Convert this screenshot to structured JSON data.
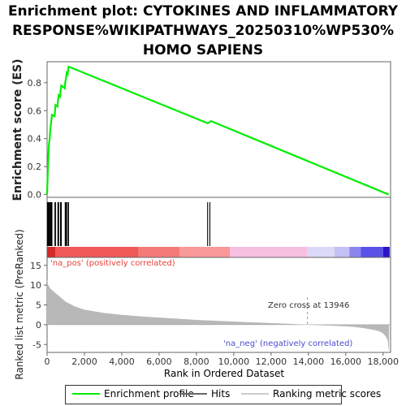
{
  "title_lines": [
    "Enrichment plot: CYTOKINES AND INFLAMMATORY",
    "RESPONSE%WIKIPATHWAYS_20250310%WP530%",
    "HOMO SAPIENS"
  ],
  "chart_data": {
    "type": "line",
    "x_axis": {
      "label": "Rank in Ordered Dataset",
      "range": [
        0,
        18400
      ],
      "ticks": [
        0,
        2000,
        4000,
        6000,
        8000,
        10000,
        12000,
        14000,
        16000,
        18000
      ],
      "tick_labels": [
        "0",
        "2,000",
        "4,000",
        "6,000",
        "8,000",
        "10,000",
        "12,000",
        "14,000",
        "16,000",
        "18,000"
      ]
    },
    "es_panel": {
      "ylabel": "Enrichment score (ES)",
      "ylim": [
        -0.02,
        0.95
      ],
      "yticks": [
        0.0,
        0.2,
        0.4,
        0.6,
        0.8
      ],
      "ytick_labels": [
        "0.0",
        "0.2",
        "0.4",
        "0.6",
        "0.8"
      ],
      "series": [
        {
          "name": "Enrichment profile",
          "color": "#00ee00",
          "points": [
            [
              0,
              0.0
            ],
            [
              20,
              0.09
            ],
            [
              40,
              0.17
            ],
            [
              60,
              0.24
            ],
            [
              80,
              0.31
            ],
            [
              100,
              0.36
            ],
            [
              140,
              0.4
            ],
            [
              170,
              0.46
            ],
            [
              220,
              0.52
            ],
            [
              260,
              0.57
            ],
            [
              400,
              0.56
            ],
            [
              420,
              0.59
            ],
            [
              450,
              0.64
            ],
            [
              560,
              0.63
            ],
            [
              580,
              0.67
            ],
            [
              620,
              0.71
            ],
            [
              700,
              0.7
            ],
            [
              720,
              0.74
            ],
            [
              760,
              0.78
            ],
            [
              950,
              0.76
            ],
            [
              970,
              0.8
            ],
            [
              1010,
              0.83
            ],
            [
              1050,
              0.87
            ],
            [
              1100,
              0.86
            ],
            [
              1130,
              0.89
            ],
            [
              1150,
              0.915
            ],
            [
              8600,
              0.51
            ],
            [
              8680,
              0.515
            ],
            [
              8720,
              0.52
            ],
            [
              8780,
              0.525
            ],
            [
              18300,
              0.0
            ]
          ]
        }
      ]
    },
    "hits": {
      "name": "Hits",
      "color": "#000000",
      "ranks": [
        20,
        40,
        60,
        80,
        100,
        140,
        170,
        220,
        260,
        420,
        450,
        580,
        620,
        720,
        760,
        970,
        1010,
        1050,
        1130,
        1150,
        8600,
        8720
      ]
    },
    "color_bar": {
      "segments": [
        {
          "start": 0,
          "end": 450,
          "color": "#d42a2a"
        },
        {
          "start": 450,
          "end": 4900,
          "color": "#f05858"
        },
        {
          "start": 4900,
          "end": 7100,
          "color": "#f47a7a"
        },
        {
          "start": 7100,
          "end": 9800,
          "color": "#f89898"
        },
        {
          "start": 9800,
          "end": 13946,
          "color": "#f8c0e0"
        },
        {
          "start": 13946,
          "end": 15400,
          "color": "#dcd8f8"
        },
        {
          "start": 15400,
          "end": 16200,
          "color": "#c4c0f4"
        },
        {
          "start": 16200,
          "end": 16800,
          "color": "#8a86ee"
        },
        {
          "start": 16800,
          "end": 18000,
          "color": "#5a52e8"
        },
        {
          "start": 18000,
          "end": 18350,
          "color": "#2a14c8"
        }
      ]
    },
    "metric_panel": {
      "name": "Ranking metric scores",
      "ylabel": "Ranked list metric (PreRanked)",
      "ylim": [
        -7,
        17
      ],
      "yticks": [
        -5,
        0,
        5,
        10,
        15
      ],
      "ytick_labels": [
        "-5",
        "0",
        "5",
        "10",
        "15"
      ],
      "fill_color": "#b8b8b8",
      "points": [
        [
          0,
          11.5
        ],
        [
          60,
          10.0
        ],
        [
          200,
          9.0
        ],
        [
          500,
          7.8
        ],
        [
          1000,
          5.8
        ],
        [
          1500,
          4.6
        ],
        [
          2000,
          3.8
        ],
        [
          3000,
          3.0
        ],
        [
          4000,
          2.5
        ],
        [
          5000,
          2.1
        ],
        [
          6000,
          1.8
        ],
        [
          7000,
          1.5
        ],
        [
          8000,
          1.2
        ],
        [
          9000,
          1.0
        ],
        [
          10000,
          0.8
        ],
        [
          11000,
          0.6
        ],
        [
          12000,
          0.4
        ],
        [
          13000,
          0.2
        ],
        [
          13946,
          0.0
        ],
        [
          15000,
          -0.2
        ],
        [
          16000,
          -0.4
        ],
        [
          16500,
          -0.6
        ],
        [
          17000,
          -0.9
        ],
        [
          17500,
          -1.3
        ],
        [
          17800,
          -1.7
        ],
        [
          18000,
          -2.2
        ],
        [
          18150,
          -3.0
        ],
        [
          18250,
          -4.0
        ],
        [
          18300,
          -6.5
        ],
        [
          18320,
          -6.5
        ]
      ],
      "zero_cross_rank": 13946,
      "annotations": {
        "pos": "'na_pos' (positively correlated)",
        "neg": "'na_neg' (negatively correlated)",
        "zero_cross": "Zero cross at 13946"
      }
    },
    "legend": [
      {
        "label": "Enrichment profile",
        "color": "#00ee00"
      },
      {
        "label": "Hits",
        "color": "#666666"
      },
      {
        "label": "Ranking metric scores",
        "color": "#cccccc"
      }
    ],
    "legend_placement": "bottom"
  }
}
